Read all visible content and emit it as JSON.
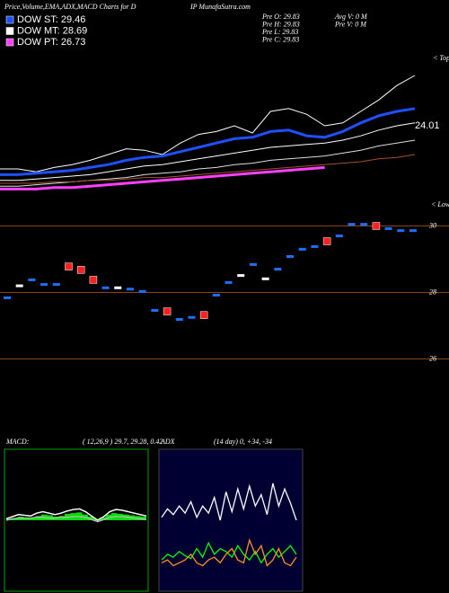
{
  "header": {
    "title": "Price,Volume,EMA,ADX,MACD Charts for D",
    "site": "IP MunafaSutra.com"
  },
  "legend": [
    {
      "label": "DOW ST: 29.46",
      "color": "#1e50ff"
    },
    {
      "label": "DOW MT: 28.69",
      "color": "#ffffff"
    },
    {
      "label": "DOW PT: 26.73",
      "color": "#ff40ff"
    }
  ],
  "info": {
    "left": [
      "Pre  O: 29.83",
      "Pre  H: 29.83",
      "Pre  L: 29.83",
      "Pre  C: 29.83"
    ],
    "right": [
      "Avg V: 0  M",
      "Pre  V: 0  M"
    ]
  },
  "chart_data": [
    {
      "type": "line",
      "annotations": [
        "< Tops",
        "24.01",
        "< Lows"
      ],
      "ylim": [
        0,
        100
      ],
      "series": [
        {
          "name": "Price",
          "color": "#ffffff",
          "width": 1,
          "values": [
            20,
            20,
            18,
            21,
            23,
            26,
            30,
            34,
            33,
            30,
            38,
            44,
            46,
            50,
            45,
            60,
            62,
            58,
            50,
            52,
            60,
            68,
            78,
            85
          ]
        },
        {
          "name": "DOW ST",
          "color": "#1e50ff",
          "width": 3,
          "values": [
            16,
            16,
            17,
            18,
            19,
            21,
            23,
            26,
            28,
            29,
            32,
            35,
            38,
            41,
            42,
            46,
            47,
            43,
            42,
            46,
            52,
            57,
            60,
            62
          ]
        },
        {
          "name": "DOW MT",
          "color": "#ffffff",
          "width": 1,
          "values": [
            12,
            12,
            13,
            14,
            15,
            16,
            18,
            20,
            22,
            23,
            25,
            27,
            29,
            31,
            33,
            35,
            36,
            37,
            38,
            40,
            43,
            47,
            50,
            52
          ]
        },
        {
          "name": "DOW LT",
          "color": "#dddddd",
          "width": 1,
          "values": [
            8,
            8,
            9,
            10,
            11,
            12,
            13,
            14,
            16,
            17,
            18,
            20,
            21,
            23,
            24,
            26,
            27,
            28,
            29,
            31,
            33,
            36,
            38,
            40
          ]
        },
        {
          "name": "EMA",
          "color": "#a0522d",
          "width": 1,
          "values": [
            10,
            10,
            10,
            11,
            11,
            12,
            12,
            13,
            14,
            14,
            15,
            16,
            17,
            18,
            19,
            20,
            21,
            22,
            23,
            24,
            25,
            27,
            28,
            30
          ]
        },
        {
          "name": "DOW PT",
          "color": "#ff40ff",
          "width": 3,
          "values": [
            6,
            6,
            6,
            7,
            7,
            8,
            9,
            10,
            11,
            12,
            13,
            14,
            15,
            16,
            17,
            18,
            19,
            20,
            21,
            null,
            null,
            null,
            null,
            null
          ]
        }
      ]
    },
    {
      "type": "candle",
      "ylim": [
        25.5,
        30.5
      ],
      "yticks": [
        30,
        28,
        26
      ],
      "grid": true,
      "values": [
        27.84,
        28.2,
        28.38,
        28.24,
        28.24,
        28.78,
        28.68,
        28.38,
        28.14,
        28.14,
        28.1,
        28.03,
        27.46,
        27.43,
        27.19,
        27.25,
        27.32,
        27.92,
        28.3,
        28.51,
        28.84,
        28.41,
        28.7,
        29.08,
        29.3,
        29.38,
        29.54,
        29.7,
        30.05,
        30.05,
        30,
        29.92,
        29.86,
        29.86
      ],
      "colors": [
        "#1e6fff",
        "#ffffff",
        "#1e6fff",
        "#1e6fff",
        "#1e6fff",
        "#ff2020",
        "#ff2020",
        "#ff2020",
        "#1e6fff",
        "#ffffff",
        "#1e6fff",
        "#1e6fff",
        "#1e6fff",
        "#ff2020",
        "#1e6fff",
        "#1e6fff",
        "#ff2020",
        "#1e6fff",
        "#1e6fff",
        "#ffffff",
        "#1e6fff",
        "#ffffff",
        "#1e6fff",
        "#1e6fff",
        "#1e6fff",
        "#1e6fff",
        "#ff2020",
        "#1e6fff",
        "#1e6fff",
        "#1e6fff",
        "#ff2020",
        "#1e6fff",
        "#1e6fff",
        "#1e6fff"
      ]
    },
    {
      "type": "macd",
      "title": "MACD:",
      "subtitle": "( 12,26,9 ) 29.7, 29.28, 0.42",
      "ylim": [
        -1,
        1
      ],
      "histogram_color": "#00e000",
      "histogram": [
        0.02,
        0.03,
        0.05,
        0.04,
        0.03,
        0.06,
        0.08,
        0.07,
        0.05,
        0.06,
        0.09,
        0.1,
        0.11,
        0.08,
        0.05,
        0.02,
        0.04,
        0.08,
        0.1,
        0.09,
        0.08,
        0.07,
        0.06,
        0.05
      ],
      "series": [
        {
          "name": "MACD",
          "color": "#ffffff",
          "values": [
            0.02,
            0.05,
            0.08,
            0.07,
            0.06,
            0.1,
            0.12,
            0.1,
            0.08,
            0.1,
            0.13,
            0.15,
            0.16,
            0.12,
            0.06,
            0.0,
            0.05,
            0.12,
            0.15,
            0.14,
            0.12,
            0.1,
            0.08,
            0.06
          ]
        },
        {
          "name": "Signal",
          "color": "#bbbbbb",
          "values": [
            0.0,
            0.02,
            0.03,
            0.03,
            0.03,
            0.04,
            0.04,
            0.03,
            0.03,
            0.04,
            0.04,
            0.05,
            0.05,
            0.04,
            0.01,
            -0.02,
            0.01,
            0.04,
            0.05,
            0.05,
            0.04,
            0.03,
            0.02,
            0.01
          ]
        }
      ]
    },
    {
      "type": "adx",
      "title": "ADX",
      "subtitle": "(14  day) 0, +34, -34",
      "ylim": [
        0,
        100
      ],
      "series": [
        {
          "name": "ADX",
          "color": "#ffffff",
          "values": [
            52,
            58,
            54,
            60,
            55,
            63,
            52,
            60,
            55,
            66,
            50,
            70,
            56,
            72,
            58,
            74,
            60,
            68,
            54,
            76,
            60,
            72,
            62,
            50
          ]
        },
        {
          "name": "+DI",
          "color": "#00ff00",
          "values": [
            22,
            26,
            24,
            28,
            25,
            23,
            30,
            24,
            34,
            26,
            30,
            28,
            24,
            32,
            26,
            22,
            28,
            20,
            26,
            30,
            24,
            28,
            32,
            26
          ]
        },
        {
          "name": "-DI",
          "color": "#ff9020",
          "values": [
            20,
            22,
            18,
            20,
            22,
            26,
            20,
            18,
            22,
            24,
            20,
            26,
            30,
            22,
            20,
            36,
            26,
            32,
            18,
            22,
            30,
            20,
            18,
            24
          ]
        }
      ]
    }
  ]
}
